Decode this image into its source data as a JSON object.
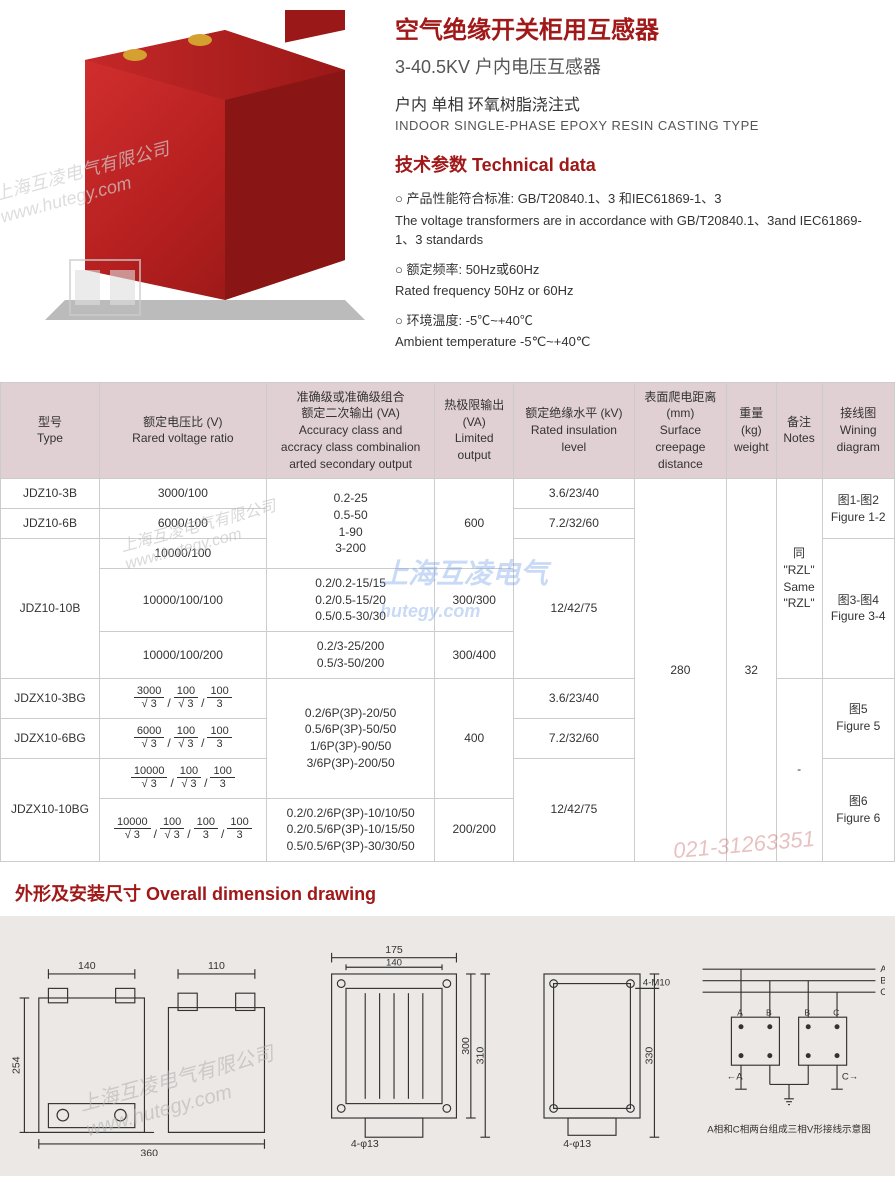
{
  "header": {
    "title_cn": "空气绝缘开关柜用互感器",
    "subtitle1": "3-40.5KV 户内电压互感器",
    "subtitle2_cn": "户内 单相 环氧树脂浇注式",
    "subtitle2_en": "INDOOR SINGLE-PHASE EPOXY RESIN CASTING TYPE",
    "tech_header": "技术参数  Technical data",
    "specs": [
      {
        "cn": "产品性能符合标准: GB/T20840.1、3 和IEC61869-1、3",
        "en": "The voltage transformers are in accordance with GB/T20840.1、3and IEC61869-1、3 standards"
      },
      {
        "cn": "额定频率: 50Hz或60Hz",
        "en": "Rated frequency 50Hz or 60Hz"
      },
      {
        "cn": "环境温度: -5℃~+40℃",
        "en": "Ambient temperature -5℃~+40℃"
      }
    ]
  },
  "watermark": {
    "company": "上海互凌电气有限公司",
    "url": "www.hutegy.com",
    "brand": "上海互凌电气",
    "brand_url": "hutegy.com",
    "phone": "021-31263351"
  },
  "table": {
    "headers": {
      "type": "型号\nType",
      "ratio": "额定电压比 (V)\nRared voltage ratio",
      "accuracy": "准确级或准确级组合\n额定二次输出 (VA)\nAccuracy class and\naccracy class combinalion\narted secondary output",
      "limited": "热极限输出\n(VA)\nLimited\noutput",
      "insulation": "额定绝缘水平 (kV)\nRated insulation\nlevel",
      "creepage": "表面爬电距离\n(mm)\nSurface\ncreepage\ndistance",
      "weight": "重量\n(kg)\nweight",
      "notes": "备注\nNotes",
      "wiring": "接线图\nWining\ndiagram"
    },
    "rows": [
      {
        "type": "JDZ10-3B",
        "ratio_plain": "3000/100",
        "insulation": "3.6/23/40"
      },
      {
        "type": "JDZ10-6B",
        "ratio_plain": "6000/100",
        "insulation": "7.2/32/60"
      },
      {
        "type": "JDZ10-10B",
        "ratio_a": "10000/100",
        "ratio_b": "10000/100/100",
        "ratio_c": "10000/100/200",
        "insulation": "12/42/75"
      },
      {
        "type": "JDZX10-3BG",
        "ratio_frac": [
          [
            "3000",
            "√ 3"
          ],
          [
            "100",
            "√ 3"
          ],
          [
            "100",
            "3"
          ]
        ],
        "insulation": "3.6/23/40"
      },
      {
        "type": "JDZX10-6BG",
        "ratio_frac": [
          [
            "6000",
            "√ 3"
          ],
          [
            "100",
            "√ 3"
          ],
          [
            "100",
            "3"
          ]
        ],
        "insulation": "7.2/32/60"
      },
      {
        "type": "JDZX10-10BG",
        "ratio_frac_a": [
          [
            "10000",
            "√ 3"
          ],
          [
            "100",
            "√ 3"
          ],
          [
            "100",
            "3"
          ]
        ],
        "ratio_frac_b": [
          [
            "10000",
            "√ 3"
          ],
          [
            "100",
            "√ 3"
          ],
          [
            "100",
            "3"
          ],
          [
            "100",
            "3"
          ]
        ],
        "insulation": "12/42/75"
      }
    ],
    "accuracy_group1": "0.2-25\n0.5-50\n1-90\n3-200",
    "accuracy_group2a": "0.2/0.2-15/15\n0.2/0.5-15/20\n0.5/0.5-30/30",
    "accuracy_group2b": "0.2/3-25/200\n0.5/3-50/200",
    "accuracy_group3": "0.2/6P(3P)-20/50\n0.5/6P(3P)-50/50\n1/6P(3P)-90/50\n3/6P(3P)-200/50",
    "accuracy_group4": "0.2/0.2/6P(3P)-10/10/50\n0.2/0.5/6P(3P)-10/15/50\n0.5/0.5/6P(3P)-30/30/50",
    "limited_600": "600",
    "limited_300_300": "300/300",
    "limited_300_400": "300/400",
    "limited_400": "400",
    "limited_200_200": "200/200",
    "creepage_val": "280",
    "weight_val": "32",
    "notes_rzl": "同\n\"RZL\"\nSame\n\"RZL\"",
    "notes_dash": "-",
    "wiring_1_2": "图1-图2\nFigure 1-2",
    "wiring_3_4": "图3-图4\nFigure 3-4",
    "wiring_5": "图5\nFigure 5",
    "wiring_6": "图6\nFigure 6"
  },
  "dimension": {
    "header": "外形及安装尺寸  Overall dimension drawing",
    "labels": {
      "d140": "140",
      "d110": "110",
      "d254": "254",
      "d360": "360",
      "d175": "175",
      "d140b": "140",
      "d300": "300",
      "d310": "310",
      "d4phi13": "4-φ13",
      "d4m10": "4-M10",
      "d330": "330",
      "circuit_note": "A相和C相两台组成三相V形接线示意图"
    }
  },
  "colors": {
    "accent": "#a01818",
    "header_bg": "#e0cfd3",
    "dim_bg": "#ece8e5",
    "product_red": "#b51f1f",
    "product_shadow": "#7a1515"
  }
}
